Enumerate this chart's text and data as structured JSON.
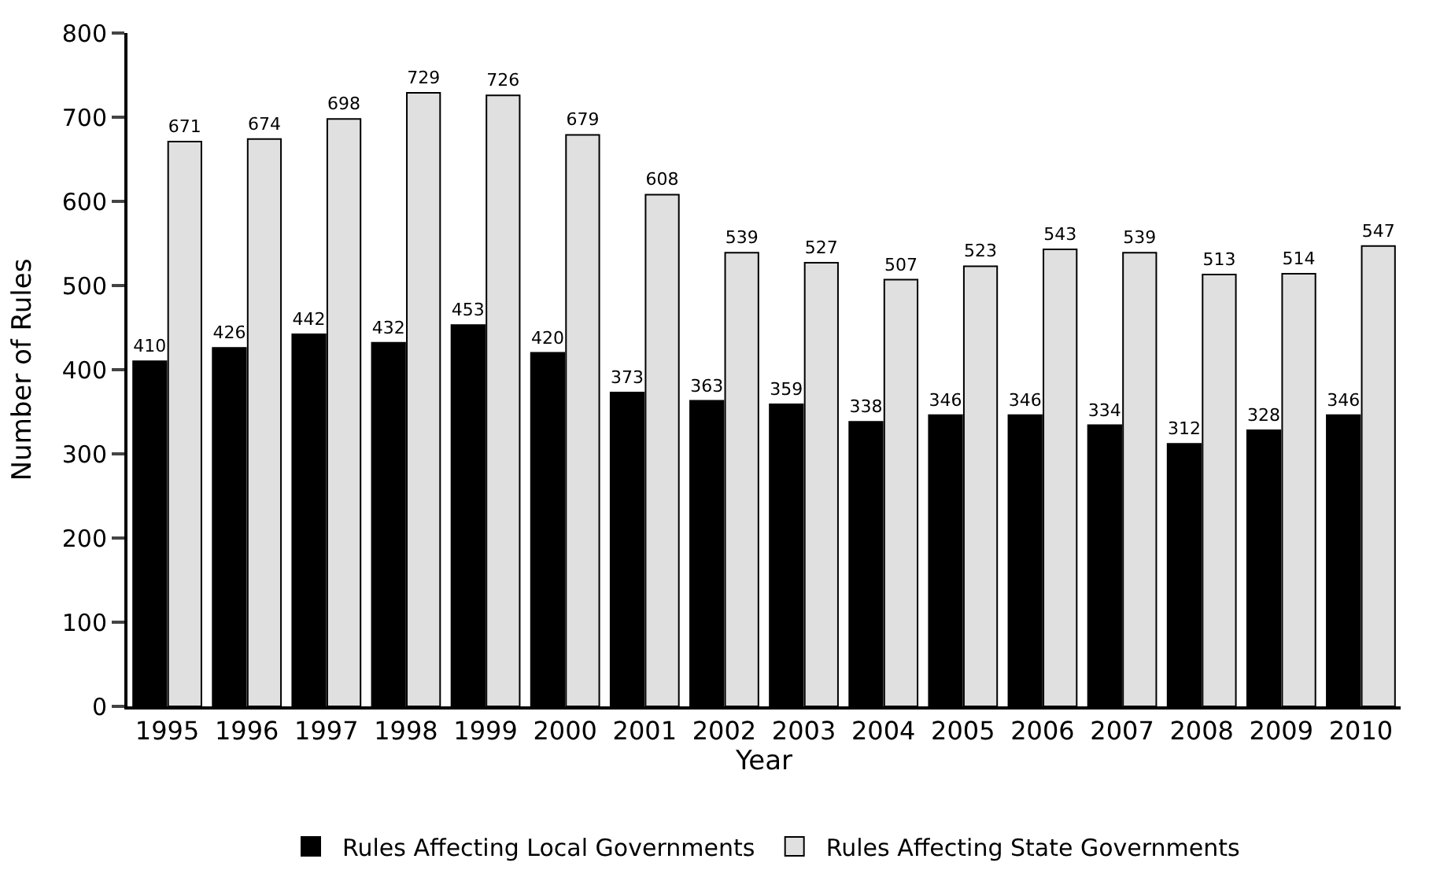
{
  "chart_data": {
    "type": "bar",
    "xlabel": "Year",
    "ylabel": "Number of Rules",
    "categories": [
      "1995",
      "1996",
      "1997",
      "1998",
      "1999",
      "2000",
      "2001",
      "2002",
      "2003",
      "2004",
      "2005",
      "2006",
      "2007",
      "2008",
      "2009",
      "2010"
    ],
    "series": [
      {
        "name": "Rules Affecting Local Governments",
        "color": "#000000",
        "values": [
          410,
          426,
          442,
          432,
          453,
          420,
          373,
          363,
          359,
          338,
          346,
          346,
          334,
          312,
          328,
          346
        ]
      },
      {
        "name": "Rules Affecting State Governments",
        "color": "#e0e0e0",
        "values": [
          671,
          674,
          698,
          729,
          726,
          679,
          608,
          539,
          527,
          507,
          523,
          543,
          539,
          513,
          514,
          547
        ]
      }
    ],
    "ylim": [
      0,
      800
    ],
    "yticks": [
      0,
      100,
      200,
      300,
      400,
      500,
      600,
      700,
      800
    ],
    "legend": "bottom",
    "data_labels": true
  }
}
